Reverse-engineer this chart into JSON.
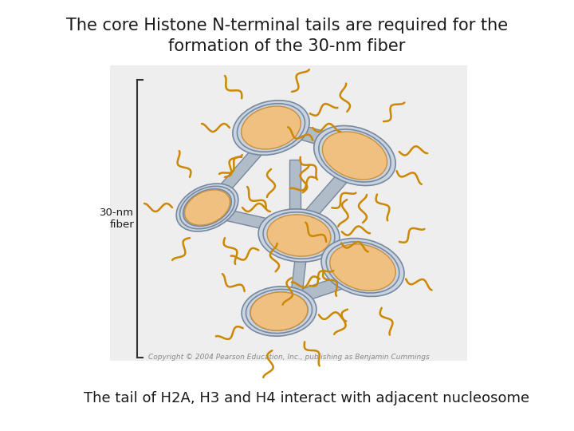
{
  "title_line1": "The core Histone N-terminal tails are required for the",
  "title_line2": "formation of the 30-nm fiber",
  "caption": "The tail of H2A, H3 and H4 interact with adjacent nucleosome",
  "title_fontsize": 15,
  "caption_fontsize": 13,
  "background_color": "#ffffff",
  "box_bg_color": "#eeeeee",
  "nucleosome_fill": "#f0c080",
  "nucleosome_edge": "#c89040",
  "fiber_fill": "#b0bcc8",
  "fiber_fill2": "#c8d4e0",
  "fiber_edge": "#7888a0",
  "tail_color": "#cc8800",
  "label_color": "#1a1a1a",
  "bracket_color": "#333333",
  "copyright_text": "Copyright © 2004 Pearson Education, Inc., publishing as Benjamin Cummings",
  "label_30nm": "30-nm\nfiber",
  "fig_width": 7.2,
  "fig_height": 5.4,
  "dpi": 100
}
